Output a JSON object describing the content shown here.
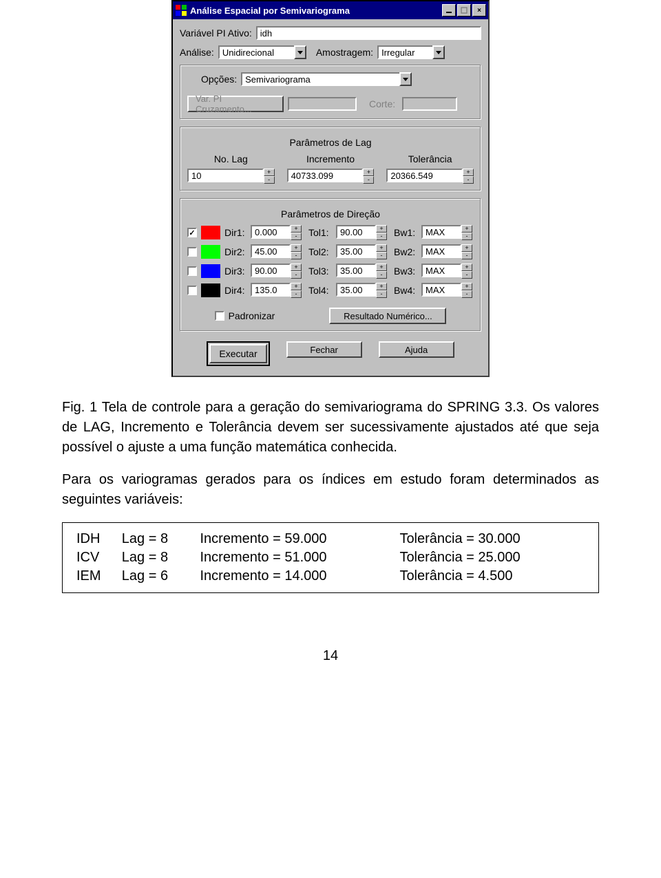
{
  "dialog": {
    "title": "Análise Espacial por Semivariograma",
    "variable_label": "Variável PI Ativo:",
    "variable_value": "idh",
    "analysis_label": "Análise:",
    "analysis_value": "Unidirecional",
    "sampling_label": "Amostragem:",
    "sampling_value": "Irregular",
    "options_label": "Opções:",
    "options_value": "Semivariograma",
    "cross_button": "Var. PI Cruzamento...",
    "corte_label": "Corte:",
    "lag_section": "Parâmetros de Lag",
    "lag": {
      "no_label": "No. Lag",
      "no_value": "10",
      "inc_label": "Incremento",
      "inc_value": "40733.099",
      "tol_label": "Tolerância",
      "tol_value": "20366.549"
    },
    "dir_section": "Parâmetros de Direção",
    "directions": [
      {
        "checked": true,
        "color": "#ff0000",
        "dir_lbl": "Dir1:",
        "dir": "0.000",
        "tol_lbl": "Tol1:",
        "tol": "90.00",
        "bw_lbl": "Bw1:",
        "bw": "MAX"
      },
      {
        "checked": false,
        "color": "#00ff00",
        "dir_lbl": "Dir2:",
        "dir": "45.00",
        "tol_lbl": "Tol2:",
        "tol": "35.00",
        "bw_lbl": "Bw2:",
        "bw": "MAX"
      },
      {
        "checked": false,
        "color": "#0000ff",
        "dir_lbl": "Dir3:",
        "dir": "90.00",
        "tol_lbl": "Tol3:",
        "tol": "35.00",
        "bw_lbl": "Bw3:",
        "bw": "MAX"
      },
      {
        "checked": false,
        "color": "#000000",
        "dir_lbl": "Dir4:",
        "dir": "135.0",
        "tol_lbl": "Tol4:",
        "tol": "35.00",
        "bw_lbl": "Bw4:",
        "bw": "MAX"
      }
    ],
    "standardize_label": "Padronizar",
    "numeric_result_btn": "Resultado Numérico...",
    "execute_btn": "Executar",
    "close_btn": "Fechar",
    "help_btn": "Ajuda"
  },
  "caption": "Fig. 1  Tela de controle para a geração do semivariograma do SPRING 3.3.  Os valores de LAG, Incremento e Tolerância devem ser sucessivamente ajustados até que seja possível o ajuste a uma função matemática conhecida.",
  "para2": "Para os variogramas gerados para os índices em estudo foram determinados as seguintes variáveis:",
  "vars": {
    "rows": [
      [
        "IDH",
        "Lag = 8",
        "Incremento = 59.000",
        "Tolerância = 30.000"
      ],
      [
        "ICV",
        "Lag = 8",
        "Incremento = 51.000",
        "Tolerância = 25.000"
      ],
      [
        "IEM",
        "Lag = 6",
        "Incremento = 14.000",
        "Tolerância =  4.500"
      ]
    ]
  },
  "page_number": "14"
}
